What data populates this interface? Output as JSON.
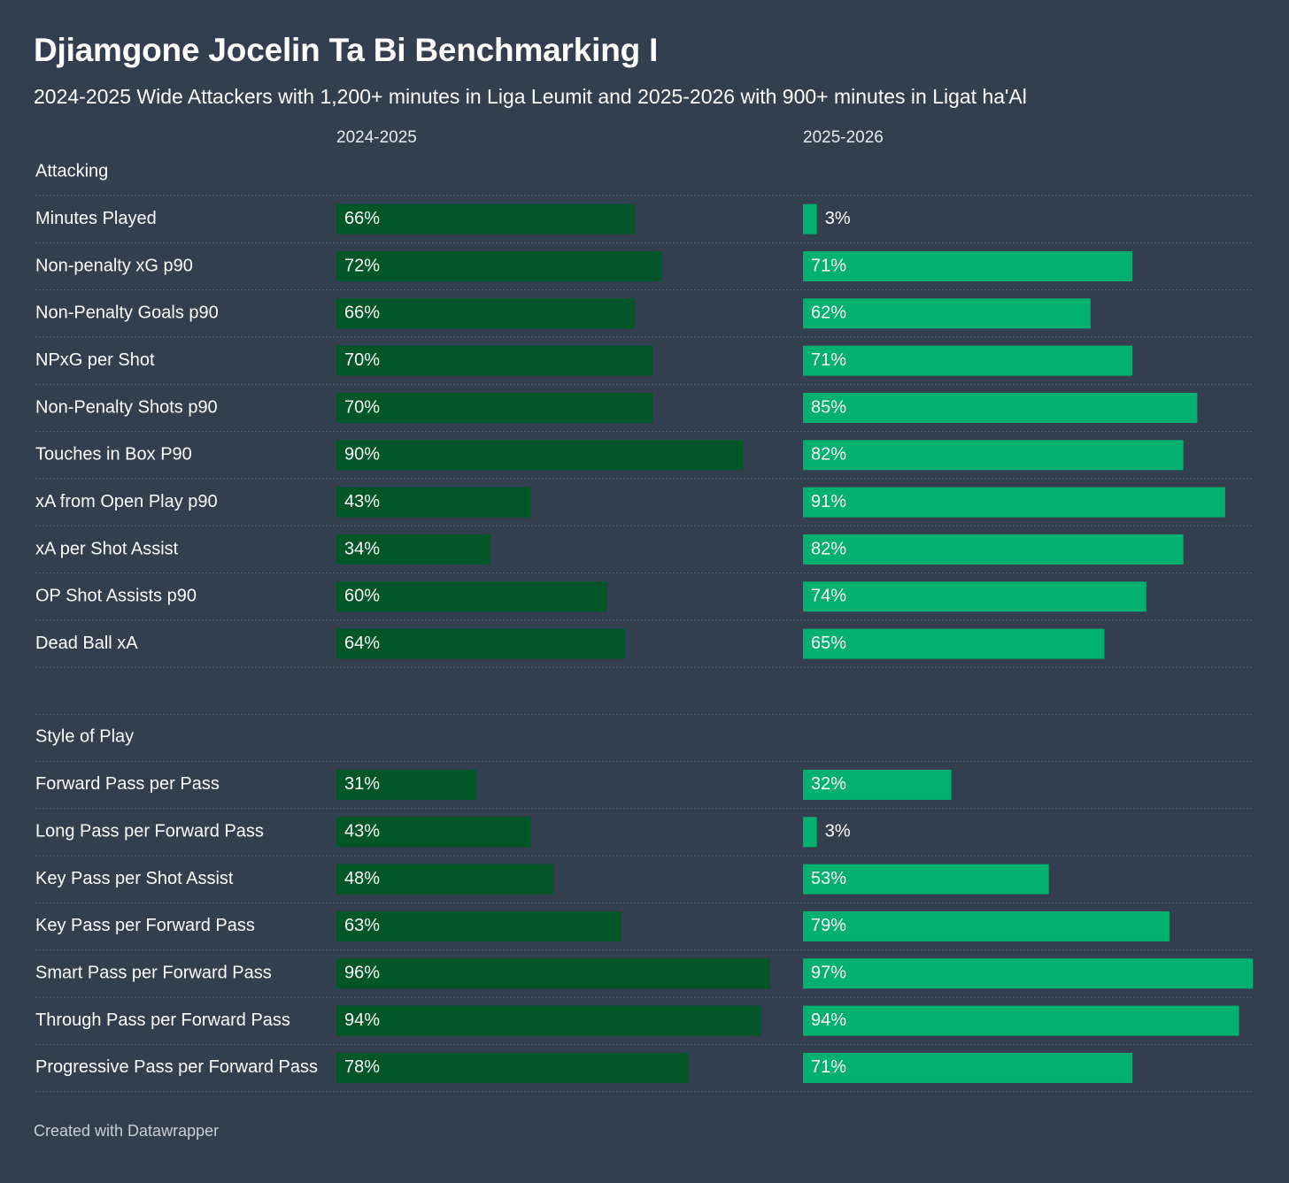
{
  "title": "Djiamgone Jocelin Ta Bi Benchmarking I",
  "subtitle": "2024-2025 Wide Attackers with 1,200+ minutes in Liga Leumit and 2025-2026 with 900+ minutes in Ligat ha'Al",
  "footer": "Created with Datawrapper",
  "colors": {
    "background": "#333e4f",
    "series_2024": "#005626",
    "series_2025": "#00b06f",
    "divider": "#56606e"
  },
  "chart_data": {
    "type": "bar",
    "orientation": "horizontal",
    "unit": "%",
    "xlim": [
      0,
      100
    ],
    "series": [
      {
        "name": "2024-2025"
      },
      {
        "name": "2025-2026"
      }
    ],
    "groups": [
      {
        "name": "Attacking",
        "rows": [
          {
            "label": "Minutes Played",
            "values": [
              66,
              3
            ]
          },
          {
            "label": "Non-penalty xG p90",
            "values": [
              72,
              71
            ]
          },
          {
            "label": "Non-Penalty Goals p90",
            "values": [
              66,
              62
            ]
          },
          {
            "label": "NPxG per Shot",
            "values": [
              70,
              71
            ]
          },
          {
            "label": "Non-Penalty Shots p90",
            "values": [
              70,
              85
            ]
          },
          {
            "label": "Touches in Box P90",
            "values": [
              90,
              82
            ]
          },
          {
            "label": "xA from Open Play p90",
            "values": [
              43,
              91
            ]
          },
          {
            "label": "xA per Shot Assist",
            "values": [
              34,
              82
            ]
          },
          {
            "label": "OP Shot Assists p90",
            "values": [
              60,
              74
            ]
          },
          {
            "label": "Dead Ball xA",
            "values": [
              64,
              65
            ]
          }
        ]
      },
      {
        "name": "Style of Play",
        "rows": [
          {
            "label": "Forward Pass per Pass",
            "values": [
              31,
              32
            ]
          },
          {
            "label": "Long Pass per Forward Pass",
            "values": [
              43,
              3
            ]
          },
          {
            "label": "Key Pass per Shot Assist",
            "values": [
              48,
              53
            ]
          },
          {
            "label": "Key Pass per Forward Pass",
            "values": [
              63,
              79
            ]
          },
          {
            "label": "Smart Pass per Forward Pass",
            "values": [
              96,
              97
            ]
          },
          {
            "label": "Through Pass per Forward Pass",
            "values": [
              94,
              94
            ]
          },
          {
            "label": "Progressive Pass per Forward Pass",
            "values": [
              78,
              71
            ]
          }
        ]
      }
    ]
  }
}
